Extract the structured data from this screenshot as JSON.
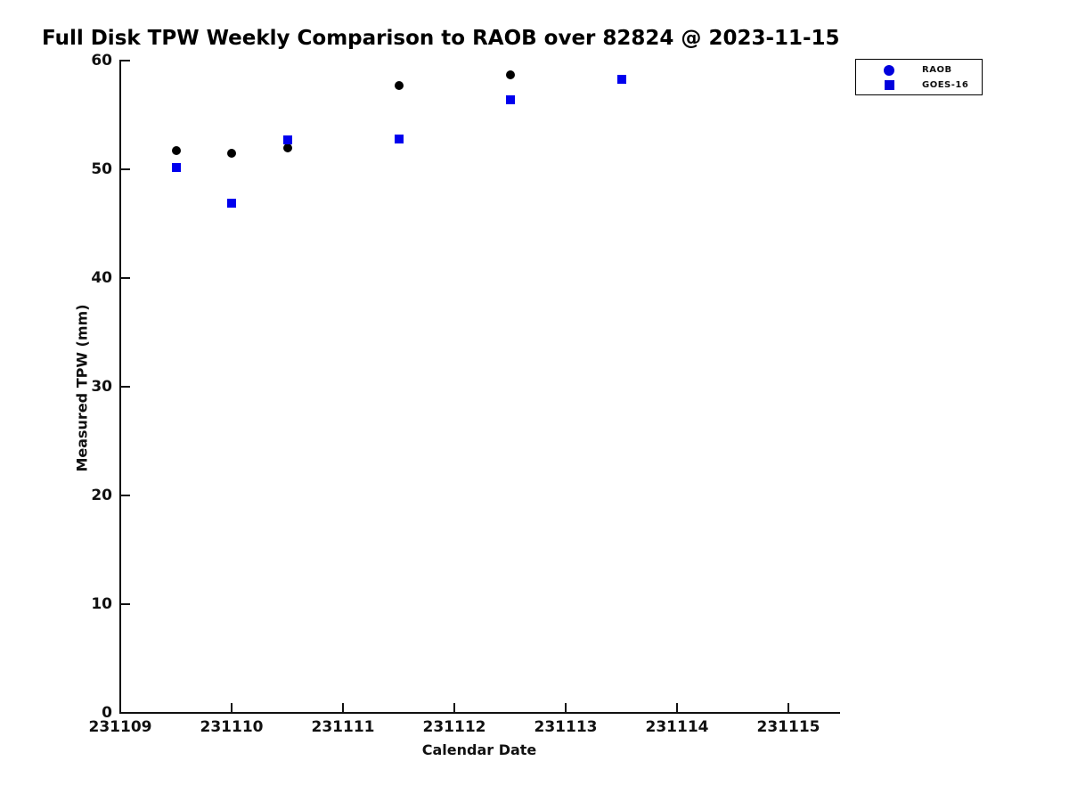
{
  "chart": {
    "title": "Full Disk TPW Weekly Comparison to RAOB over 82824 @ 2023-11-15",
    "xlabel": "Calendar Date",
    "ylabel": "Measured TPW (mm)"
  },
  "legend": {
    "position": "top-right",
    "items": [
      {
        "label": "RAOB",
        "marker": "circle",
        "color": "#0000dd"
      },
      {
        "label": "GOES-16",
        "marker": "square",
        "color": "#0000dd"
      }
    ]
  },
  "chart_data": {
    "type": "scatter",
    "title": "Full Disk TPW Weekly Comparison to RAOB over 82824 @ 2023-11-15",
    "xlabel": "Calendar Date",
    "ylabel": "Measured TPW (mm)",
    "xlim": [
      231109,
      231115.5
    ],
    "ylim": [
      0,
      60
    ],
    "x_ticks": [
      231109,
      231110,
      231111,
      231112,
      231113,
      231114,
      231115
    ],
    "y_ticks": [
      0,
      10,
      20,
      30,
      40,
      50,
      60
    ],
    "grid": false,
    "legend_position": "upper right",
    "series": [
      {
        "name": "RAOB",
        "marker": "circle",
        "color": "#000000",
        "points": [
          {
            "x": 231109.5,
            "y": 51.7
          },
          {
            "x": 231110.0,
            "y": 51.5
          },
          {
            "x": 231110.5,
            "y": 52.0
          },
          {
            "x": 231111.5,
            "y": 57.7
          },
          {
            "x": 231112.5,
            "y": 58.7
          }
        ]
      },
      {
        "name": "GOES-16",
        "marker": "square",
        "color": "#0000ee",
        "points": [
          {
            "x": 231109.5,
            "y": 50.2
          },
          {
            "x": 231110.0,
            "y": 46.9
          },
          {
            "x": 231110.5,
            "y": 52.7
          },
          {
            "x": 231111.5,
            "y": 52.8
          },
          {
            "x": 231112.5,
            "y": 56.4
          },
          {
            "x": 231113.5,
            "y": 58.3
          }
        ]
      }
    ]
  }
}
